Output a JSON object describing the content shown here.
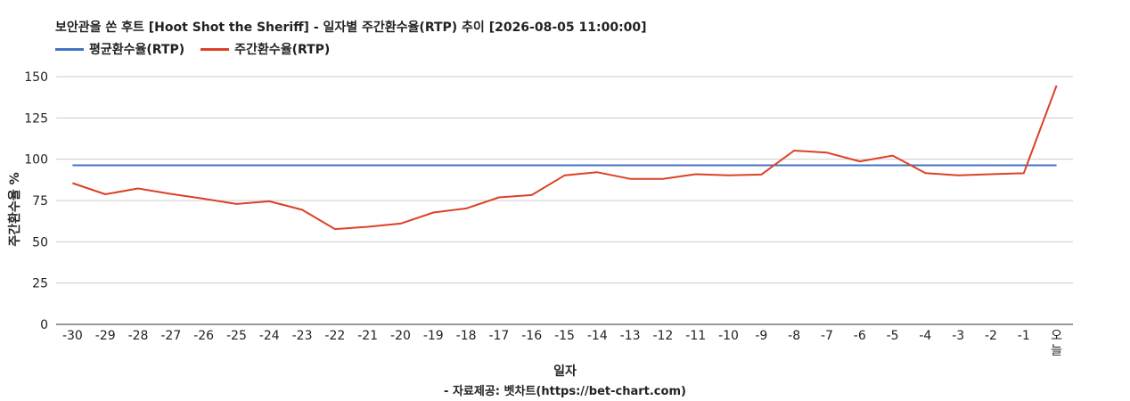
{
  "chart_data": {
    "type": "line",
    "title": "보안관을 쏜 후트 [Hoot Shot the Sheriff] - 일자별 주간환수율(RTP) 추이 [2026-08-05 11:00:00]",
    "xlabel": "일자",
    "ylabel": "주간환수율 %",
    "source": "- 자료제공: 벳차트(https://bet-chart.com)",
    "categories": [
      "-30",
      "-29",
      "-28",
      "-27",
      "-26",
      "-25",
      "-24",
      "-23",
      "-22",
      "-21",
      "-20",
      "-19",
      "-18",
      "-17",
      "-16",
      "-15",
      "-14",
      "-13",
      "-12",
      "-11",
      "-10",
      "-9",
      "-8",
      "-7",
      "-6",
      "-5",
      "-4",
      "-3",
      "-2",
      "-1",
      "오늘"
    ],
    "yticks": [
      0,
      25,
      50,
      75,
      100,
      125,
      150
    ],
    "ylim": [
      0,
      150
    ],
    "grid": true,
    "legend_position": "top-left",
    "series": [
      {
        "name": "평균환수율(RTP)",
        "color": "#4472c4",
        "values": [
          96.3,
          96.3,
          96.3,
          96.3,
          96.3,
          96.3,
          96.3,
          96.3,
          96.3,
          96.3,
          96.3,
          96.3,
          96.3,
          96.3,
          96.3,
          96.3,
          96.3,
          96.3,
          96.3,
          96.3,
          96.3,
          96.3,
          96.3,
          96.3,
          96.3,
          96.3,
          96.3,
          96.3,
          96.3,
          96.3,
          96.3
        ]
      },
      {
        "name": "주간환수율(RTP)",
        "color": "#db4125",
        "values": [
          85.5,
          78.8,
          82.3,
          79.0,
          76.1,
          72.9,
          74.5,
          69.4,
          57.7,
          59.1,
          61.0,
          67.7,
          70.2,
          76.9,
          78.3,
          90.2,
          92.1,
          88.1,
          88.1,
          90.9,
          90.2,
          90.7,
          105.2,
          104.0,
          98.7,
          102.2,
          91.6,
          90.2,
          90.9,
          91.5,
          144.6
        ]
      }
    ]
  }
}
